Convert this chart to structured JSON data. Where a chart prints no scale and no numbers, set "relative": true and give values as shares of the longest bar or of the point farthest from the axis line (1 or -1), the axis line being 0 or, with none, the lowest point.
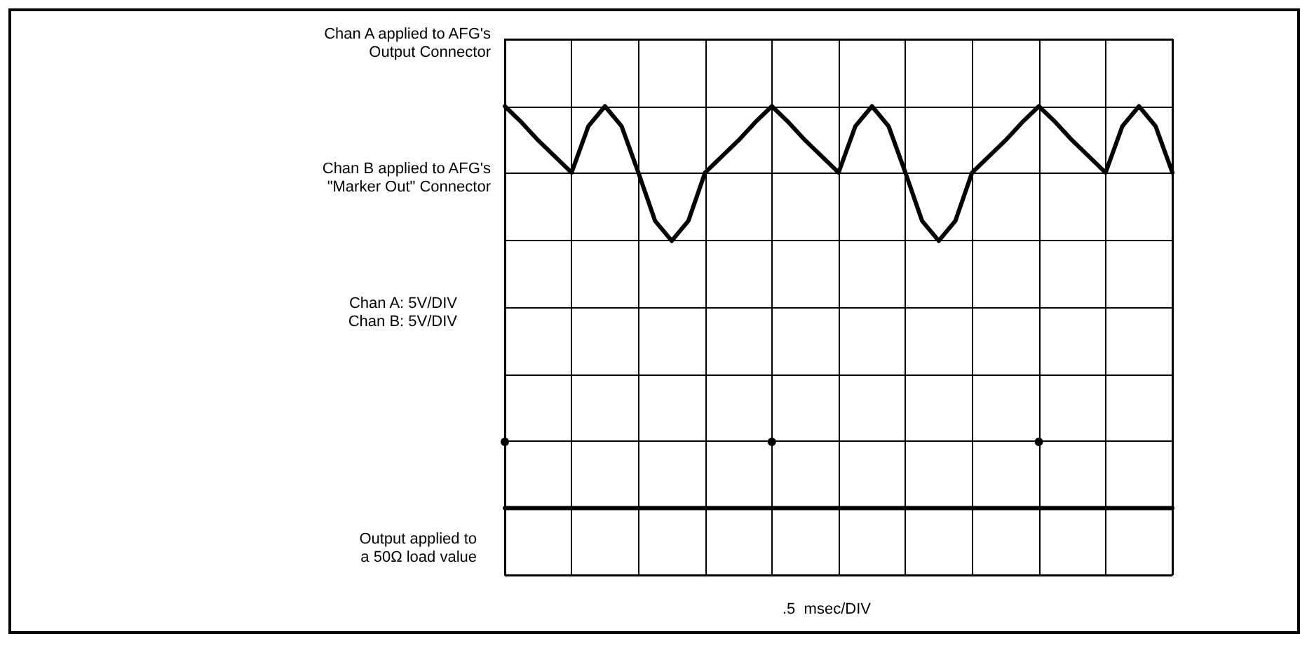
{
  "chart_data": {
    "type": "line",
    "relative": true,
    "grid": true,
    "categories": [
      null,
      null,
      null,
      null,
      null,
      null,
      null,
      null,
      null,
      null,
      null,
      null,
      null,
      null,
      null,
      null,
      null,
      null,
      null,
      null,
      null,
      null,
      null,
      null,
      null,
      null,
      null,
      null,
      null,
      null,
      null,
      null,
      null,
      null,
      null,
      null,
      null,
      null,
      null,
      null,
      null
    ],
    "series": [
      {
        "color": "#000000",
        "values": [
          1,
          0.92,
          0.83,
          0.75,
          0.67,
          0.9,
          1,
          0.9,
          0.67,
          0.43,
          0.33,
          0.43,
          0.67,
          0.75,
          0.83,
          0.92,
          1,
          0.92,
          0.83,
          0.75,
          0.67,
          0.9,
          1,
          0.9,
          0.67,
          0.43,
          0.33,
          0.43,
          0.67,
          0.75,
          0.83,
          0.92,
          1,
          0.92,
          0.83,
          0.75,
          0.67,
          0.9,
          1,
          0.9,
          0.67
        ]
      },
      {
        "color": "#000000",
        "values": [
          -1,
          -1,
          -1,
          -1,
          -1,
          -1,
          -1,
          -1,
          -1,
          -1,
          -1,
          -1,
          -1,
          -1,
          -1,
          -1,
          -1,
          -1,
          -1,
          -1,
          -1,
          -1,
          -1,
          -1,
          -1,
          -1,
          -1,
          -1,
          -1,
          -1,
          -1,
          -1,
          -1,
          -1,
          -1,
          -1,
          -1,
          -1,
          -1,
          -1,
          -1
        ]
      },
      {
        "marker": "circle",
        "color": "#000000",
        "values": [
          -0.67,
          null,
          null,
          null,
          null,
          null,
          null,
          null,
          null,
          null,
          null,
          null,
          null,
          null,
          null,
          null,
          -0.67,
          null,
          null,
          null,
          null,
          null,
          null,
          null,
          null,
          null,
          null,
          null,
          null,
          null,
          null,
          null,
          -0.67,
          null,
          null,
          null,
          null,
          null,
          null,
          null,
          null
        ]
      }
    ],
    "annotations": [
      "Chan A applied to AFG's\nOutput Connector",
      "Chan B applied to AFG's\n\"Marker Out\" Connector",
      "Chan A: 5V/DIV\nChan B: 5V/DIV",
      "Output applied to\na 50Ω load value",
      ".5  msec/DIV"
    ]
  }
}
